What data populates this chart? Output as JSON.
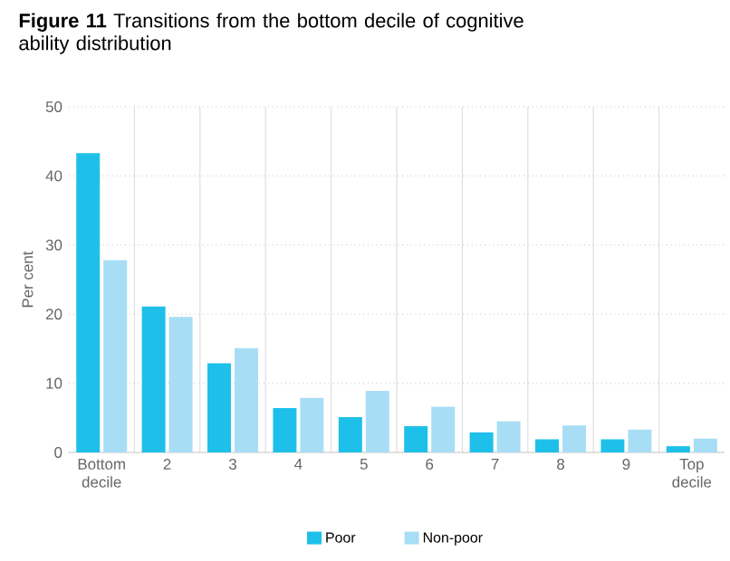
{
  "chart_data": {
    "type": "bar",
    "title": "**Figure 11** Transitions from the bottom decile of cognitive ability distribution",
    "ylabel": "Per cent",
    "categories": [
      "Bottom decile",
      "2",
      "3",
      "4",
      "5",
      "6",
      "7",
      "8",
      "9",
      "Top decile"
    ],
    "series": [
      {
        "name": "Poor",
        "color": "#1ec0ea",
        "values": [
          43.3,
          21.1,
          12.9,
          6.4,
          5.1,
          3.8,
          2.9,
          1.9,
          1.9,
          0.9
        ]
      },
      {
        "name": "Non-poor",
        "color": "#a8def5",
        "values": [
          27.8,
          19.6,
          15.1,
          7.9,
          8.9,
          6.6,
          4.5,
          3.9,
          3.3,
          2.0
        ]
      }
    ],
    "ylim": [
      0,
      50
    ],
    "yticks": [
      0,
      10,
      20,
      30,
      40,
      50
    ],
    "grid": true,
    "legend": "bottom"
  }
}
